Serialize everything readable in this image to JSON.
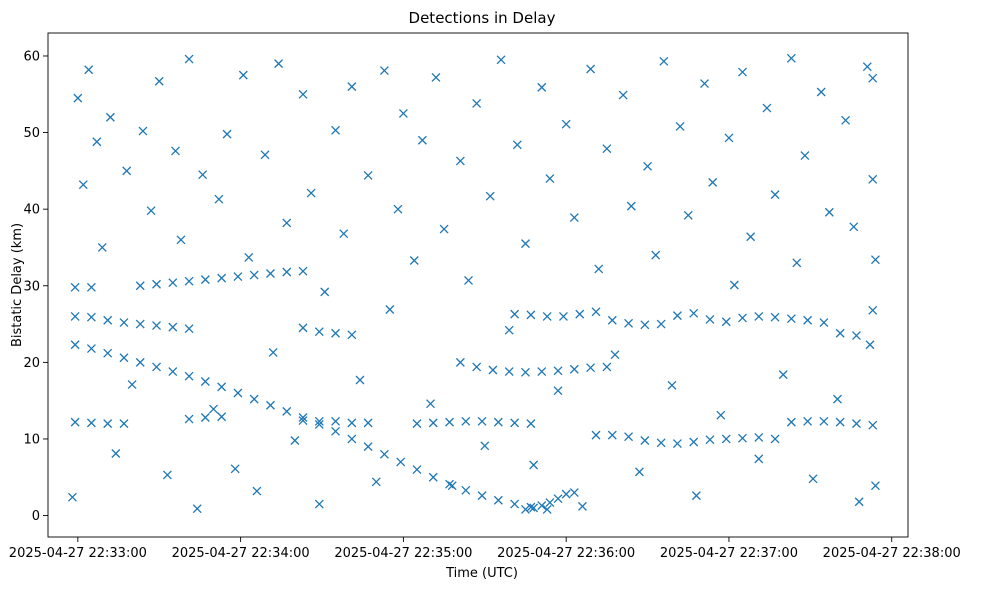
{
  "chart_data": {
    "type": "scatter",
    "title": "Detections in Delay",
    "xlabel": "Time (UTC)",
    "ylabel": "Bistatic Delay (km)",
    "marker": "x",
    "color": "#1f77b4",
    "grid": false,
    "xlim": [
      "2025-04-27 22:32:49",
      "2025-04-27 22:38:06"
    ],
    "ylim": [
      -2.8,
      63
    ],
    "xticks": [
      "2025-04-27 22:33:00",
      "2025-04-27 22:34:00",
      "2025-04-27 22:35:00",
      "2025-04-27 22:36:00",
      "2025-04-27 22:37:00",
      "2025-04-27 22:38:00"
    ],
    "yticks": [
      0,
      10,
      20,
      30,
      40,
      50,
      60
    ],
    "series": [
      {
        "description": "descending track",
        "points": [
          [
            "22:32:59",
            22.3
          ],
          [
            "22:33:05",
            21.8
          ],
          [
            "22:33:11",
            21.2
          ],
          [
            "22:33:17",
            20.6
          ],
          [
            "22:33:23",
            20.0
          ],
          [
            "22:33:29",
            19.4
          ],
          [
            "22:33:35",
            18.8
          ],
          [
            "22:33:41",
            18.2
          ],
          [
            "22:33:47",
            17.5
          ],
          [
            "22:33:53",
            16.8
          ],
          [
            "22:33:59",
            16.0
          ],
          [
            "22:34:05",
            15.2
          ],
          [
            "22:34:11",
            14.4
          ],
          [
            "22:34:17",
            13.6
          ],
          [
            "22:34:23",
            12.8
          ],
          [
            "22:34:29",
            11.9
          ],
          [
            "22:34:35",
            11.0
          ],
          [
            "22:34:41",
            10.0
          ],
          [
            "22:34:47",
            9.0
          ],
          [
            "22:34:53",
            8.0
          ],
          [
            "22:34:59",
            7.0
          ],
          [
            "22:35:05",
            6.0
          ],
          [
            "22:35:11",
            5.0
          ],
          [
            "22:35:17",
            4.1
          ],
          [
            "22:35:23",
            3.3
          ],
          [
            "22:35:29",
            2.6
          ],
          [
            "22:35:35",
            2.0
          ],
          [
            "22:35:41",
            1.5
          ],
          [
            "22:35:47",
            1.1
          ],
          [
            "22:35:53",
            0.8
          ]
        ]
      },
      {
        "description": "rising track",
        "points": [
          [
            "22:35:45",
            0.8
          ],
          [
            "22:35:48",
            1.0
          ],
          [
            "22:35:51",
            1.3
          ],
          [
            "22:35:54",
            1.7
          ],
          [
            "22:35:57",
            2.2
          ],
          [
            "22:36:00",
            2.8
          ],
          [
            "22:36:03",
            3.0
          ]
        ]
      },
      {
        "description": "track near 12 km",
        "points": [
          [
            "22:32:59",
            12.2
          ],
          [
            "22:33:05",
            12.1
          ],
          [
            "22:33:11",
            12.0
          ],
          [
            "22:33:17",
            12.0
          ],
          [
            "22:33:41",
            12.6
          ],
          [
            "22:33:47",
            12.8
          ],
          [
            "22:33:53",
            12.9
          ],
          [
            "22:34:23",
            12.4
          ],
          [
            "22:34:29",
            12.3
          ],
          [
            "22:34:35",
            12.3
          ],
          [
            "22:34:41",
            12.1
          ],
          [
            "22:34:47",
            12.1
          ],
          [
            "22:35:05",
            12.0
          ],
          [
            "22:35:11",
            12.1
          ],
          [
            "22:35:17",
            12.2
          ],
          [
            "22:35:23",
            12.3
          ],
          [
            "22:35:29",
            12.3
          ],
          [
            "22:35:35",
            12.2
          ],
          [
            "22:35:41",
            12.1
          ],
          [
            "22:35:47",
            12.0
          ],
          [
            "22:36:11",
            10.5
          ],
          [
            "22:36:17",
            10.5
          ],
          [
            "22:36:23",
            10.3
          ],
          [
            "22:36:29",
            9.8
          ],
          [
            "22:36:35",
            9.5
          ],
          [
            "22:36:41",
            9.4
          ],
          [
            "22:36:47",
            9.6
          ],
          [
            "22:36:53",
            9.9
          ],
          [
            "22:36:59",
            10.0
          ],
          [
            "22:37:05",
            10.1
          ],
          [
            "22:37:11",
            10.2
          ],
          [
            "22:37:17",
            10.0
          ],
          [
            "22:37:23",
            12.2
          ],
          [
            "22:37:29",
            12.3
          ],
          [
            "22:37:35",
            12.3
          ],
          [
            "22:37:41",
            12.2
          ],
          [
            "22:37:47",
            12.0
          ],
          [
            "22:37:53",
            11.8
          ]
        ]
      },
      {
        "description": "track near 19 km",
        "points": [
          [
            "22:35:21",
            20.0
          ],
          [
            "22:35:27",
            19.4
          ],
          [
            "22:35:33",
            19.0
          ],
          [
            "22:35:39",
            18.8
          ],
          [
            "22:35:45",
            18.7
          ],
          [
            "22:35:51",
            18.8
          ],
          [
            "22:35:57",
            18.9
          ],
          [
            "22:36:03",
            19.1
          ],
          [
            "22:36:09",
            19.3
          ],
          [
            "22:36:15",
            19.4
          ]
        ]
      },
      {
        "description": "track near 25 km",
        "points": [
          [
            "22:32:59",
            26.0
          ],
          [
            "22:33:05",
            25.9
          ],
          [
            "22:33:11",
            25.5
          ],
          [
            "22:33:17",
            25.2
          ],
          [
            "22:33:23",
            25.0
          ],
          [
            "22:33:29",
            24.8
          ],
          [
            "22:33:35",
            24.6
          ],
          [
            "22:33:41",
            24.4
          ],
          [
            "22:34:23",
            24.5
          ],
          [
            "22:34:29",
            24.0
          ],
          [
            "22:34:35",
            23.8
          ],
          [
            "22:34:41",
            23.6
          ],
          [
            "22:35:41",
            26.3
          ],
          [
            "22:35:47",
            26.2
          ],
          [
            "22:35:53",
            26.0
          ],
          [
            "22:35:59",
            26.0
          ],
          [
            "22:36:05",
            26.3
          ],
          [
            "22:36:11",
            26.6
          ],
          [
            "22:36:17",
            25.5
          ],
          [
            "22:36:23",
            25.1
          ],
          [
            "22:36:29",
            24.9
          ],
          [
            "22:36:35",
            25.0
          ],
          [
            "22:36:41",
            26.1
          ],
          [
            "22:36:47",
            26.4
          ],
          [
            "22:36:53",
            25.6
          ],
          [
            "22:36:59",
            25.3
          ],
          [
            "22:37:05",
            25.8
          ],
          [
            "22:37:11",
            26.0
          ],
          [
            "22:37:17",
            25.9
          ],
          [
            "22:37:23",
            25.7
          ],
          [
            "22:37:29",
            25.5
          ],
          [
            "22:37:35",
            25.2
          ],
          [
            "22:37:41",
            23.8
          ],
          [
            "22:37:47",
            23.5
          ],
          [
            "22:37:53",
            26.8
          ]
        ]
      },
      {
        "description": "track near 30 km",
        "points": [
          [
            "22:32:59",
            29.8
          ],
          [
            "22:33:05",
            29.8
          ],
          [
            "22:33:23",
            30.0
          ],
          [
            "22:33:29",
            30.2
          ],
          [
            "22:33:35",
            30.4
          ],
          [
            "22:33:41",
            30.6
          ],
          [
            "22:33:47",
            30.8
          ],
          [
            "22:33:53",
            31.0
          ],
          [
            "22:33:59",
            31.2
          ],
          [
            "22:34:05",
            31.4
          ],
          [
            "22:34:11",
            31.6
          ],
          [
            "22:34:17",
            31.8
          ],
          [
            "22:34:23",
            31.9
          ]
        ]
      },
      {
        "description": "scattered detections",
        "points": [
          [
            "22:32:58",
            2.4
          ],
          [
            "22:33:00",
            54.5
          ],
          [
            "22:33:02",
            43.2
          ],
          [
            "22:33:04",
            58.2
          ],
          [
            "22:33:07",
            48.8
          ],
          [
            "22:33:09",
            35.0
          ],
          [
            "22:33:12",
            52.0
          ],
          [
            "22:33:14",
            8.1
          ],
          [
            "22:33:18",
            45.0
          ],
          [
            "22:33:20",
            17.1
          ],
          [
            "22:33:24",
            50.2
          ],
          [
            "22:33:27",
            39.8
          ],
          [
            "22:33:30",
            56.7
          ],
          [
            "22:33:33",
            5.3
          ],
          [
            "22:33:36",
            47.6
          ],
          [
            "22:33:38",
            36.0
          ],
          [
            "22:33:41",
            59.6
          ],
          [
            "22:33:44",
            0.9
          ],
          [
            "22:33:46",
            44.5
          ],
          [
            "22:33:50",
            13.9
          ],
          [
            "22:33:52",
            41.3
          ],
          [
            "22:33:55",
            49.8
          ],
          [
            "22:33:58",
            6.1
          ],
          [
            "22:34:01",
            57.5
          ],
          [
            "22:34:03",
            33.7
          ],
          [
            "22:34:06",
            3.2
          ],
          [
            "22:34:09",
            47.1
          ],
          [
            "22:34:12",
            21.3
          ],
          [
            "22:34:14",
            59.0
          ],
          [
            "22:34:17",
            38.2
          ],
          [
            "22:34:20",
            9.8
          ],
          [
            "22:34:23",
            55.0
          ],
          [
            "22:34:26",
            42.1
          ],
          [
            "22:34:29",
            1.5
          ],
          [
            "22:34:31",
            29.2
          ],
          [
            "22:34:35",
            50.3
          ],
          [
            "22:34:38",
            36.8
          ],
          [
            "22:34:41",
            56.0
          ],
          [
            "22:34:44",
            17.7
          ],
          [
            "22:34:47",
            44.4
          ],
          [
            "22:34:50",
            4.4
          ],
          [
            "22:34:53",
            58.1
          ],
          [
            "22:34:55",
            26.9
          ],
          [
            "22:34:58",
            40.0
          ],
          [
            "22:35:00",
            52.5
          ],
          [
            "22:35:04",
            33.3
          ],
          [
            "22:35:07",
            49.0
          ],
          [
            "22:35:10",
            14.6
          ],
          [
            "22:35:12",
            57.2
          ],
          [
            "22:35:15",
            37.4
          ],
          [
            "22:35:18",
            3.9
          ],
          [
            "22:35:21",
            46.3
          ],
          [
            "22:35:24",
            30.7
          ],
          [
            "22:35:27",
            53.8
          ],
          [
            "22:35:30",
            9.1
          ],
          [
            "22:35:32",
            41.7
          ],
          [
            "22:35:36",
            59.5
          ],
          [
            "22:35:39",
            24.2
          ],
          [
            "22:35:42",
            48.4
          ],
          [
            "22:35:45",
            35.5
          ],
          [
            "22:35:48",
            6.6
          ],
          [
            "22:35:51",
            55.9
          ],
          [
            "22:35:54",
            44.0
          ],
          [
            "22:35:57",
            16.3
          ],
          [
            "22:36:00",
            51.1
          ],
          [
            "22:36:03",
            38.9
          ],
          [
            "22:36:06",
            1.2
          ],
          [
            "22:36:09",
            58.3
          ],
          [
            "22:36:12",
            32.2
          ],
          [
            "22:36:15",
            47.9
          ],
          [
            "22:36:18",
            21.0
          ],
          [
            "22:36:21",
            54.9
          ],
          [
            "22:36:24",
            40.4
          ],
          [
            "22:36:27",
            5.7
          ],
          [
            "22:36:30",
            45.6
          ],
          [
            "22:36:33",
            34.0
          ],
          [
            "22:36:36",
            59.3
          ],
          [
            "22:36:39",
            17.0
          ],
          [
            "22:36:42",
            50.8
          ],
          [
            "22:36:45",
            39.2
          ],
          [
            "22:36:48",
            2.6
          ],
          [
            "22:36:51",
            56.4
          ],
          [
            "22:36:54",
            43.5
          ],
          [
            "22:36:57",
            13.1
          ],
          [
            "22:37:00",
            49.3
          ],
          [
            "22:37:02",
            30.1
          ],
          [
            "22:37:05",
            57.9
          ],
          [
            "22:37:08",
            36.4
          ],
          [
            "22:37:11",
            7.4
          ],
          [
            "22:37:14",
            53.2
          ],
          [
            "22:37:17",
            41.9
          ],
          [
            "22:37:20",
            18.4
          ],
          [
            "22:37:23",
            59.7
          ],
          [
            "22:37:25",
            33.0
          ],
          [
            "22:37:28",
            47.0
          ],
          [
            "22:37:31",
            4.8
          ],
          [
            "22:37:34",
            55.3
          ],
          [
            "22:37:37",
            39.6
          ],
          [
            "22:37:40",
            15.2
          ],
          [
            "22:37:43",
            51.6
          ],
          [
            "22:37:46",
            37.7
          ],
          [
            "22:37:48",
            1.8
          ],
          [
            "22:37:51",
            58.6
          ],
          [
            "22:37:53",
            43.9
          ],
          [
            "22:37:54",
            33.4
          ],
          [
            "22:37:54",
            3.9
          ],
          [
            "22:37:53",
            57.1
          ],
          [
            "22:37:52",
            22.3
          ]
        ]
      }
    ]
  }
}
